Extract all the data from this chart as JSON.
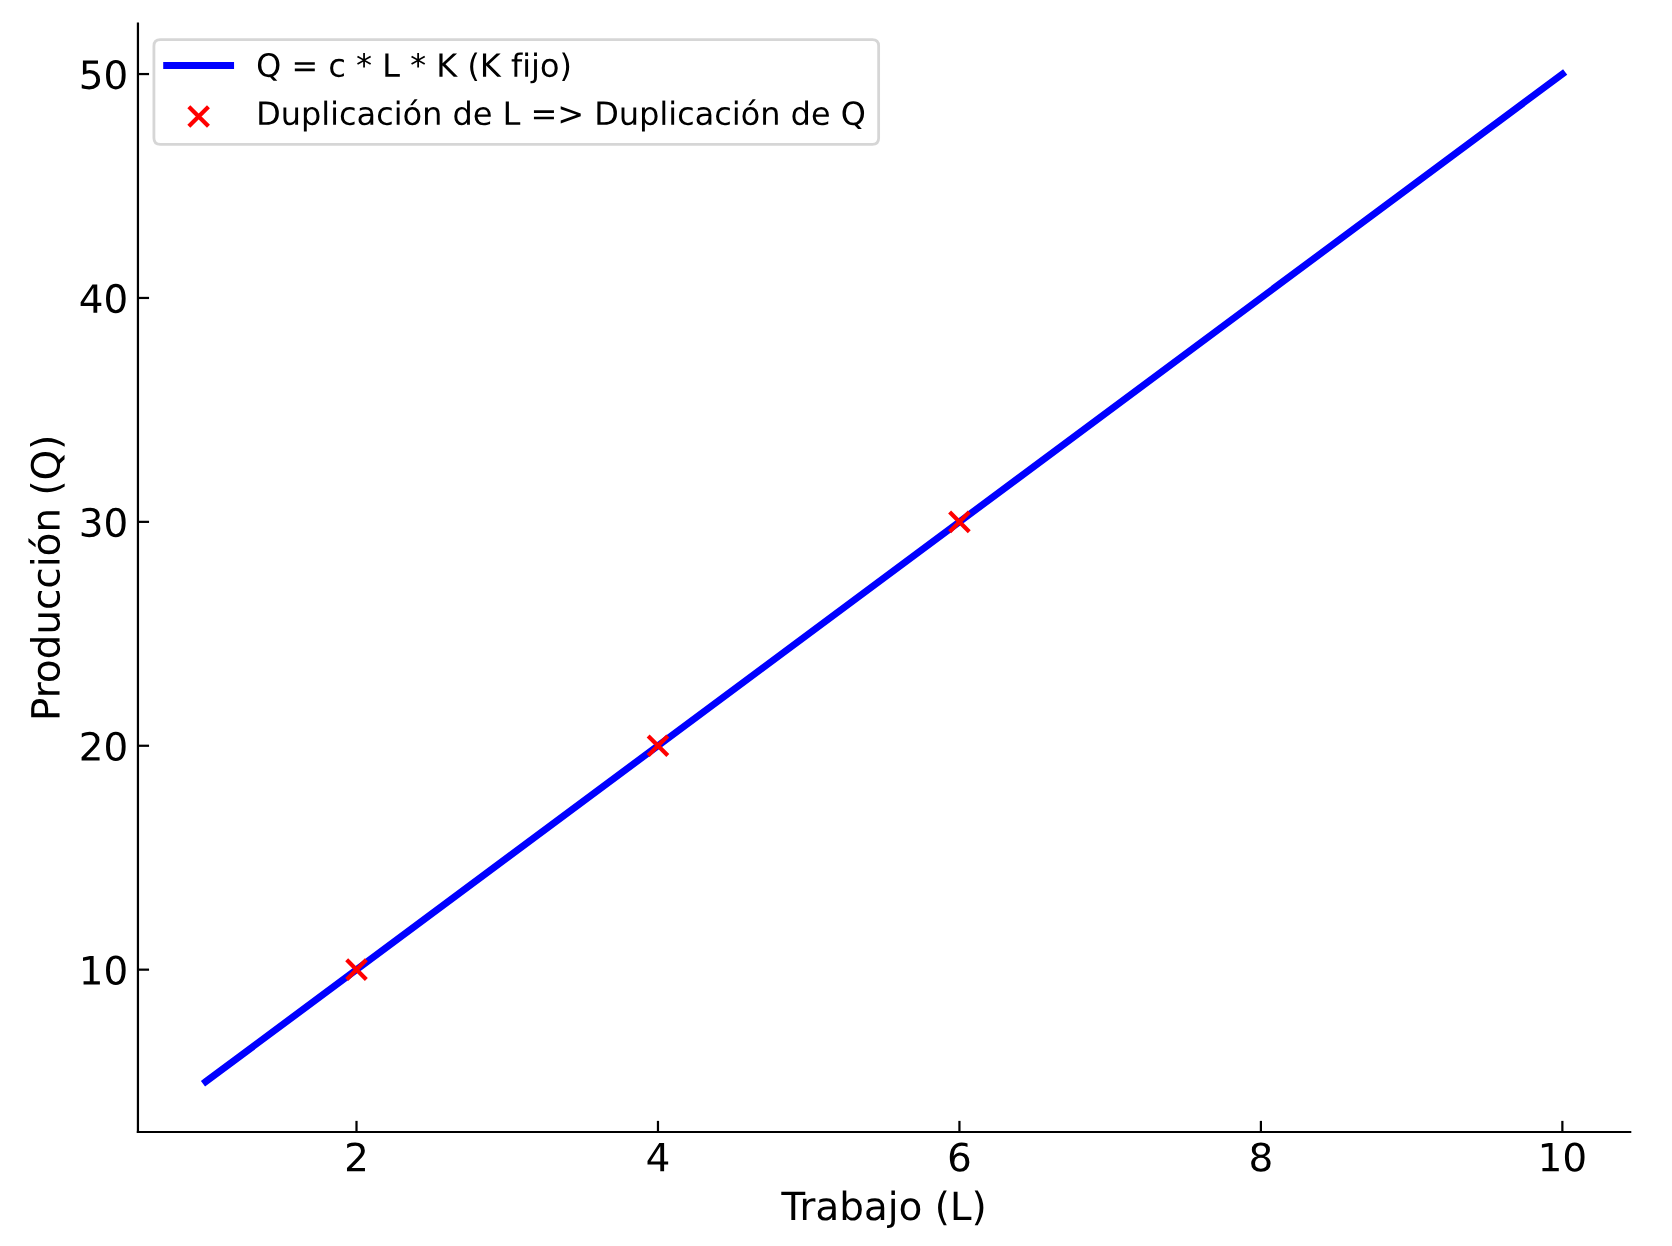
{
  "chart_data": {
    "type": "line",
    "xlabel": "Trabajo (L)",
    "ylabel": "Producción (Q)",
    "xlim": [
      0.55,
      10.45
    ],
    "ylim": [
      2.75,
      52.25
    ],
    "xticks": [
      2,
      4,
      6,
      8,
      10
    ],
    "yticks": [
      10,
      20,
      30,
      40,
      50
    ],
    "grid": false,
    "legend": "top left",
    "series": [
      {
        "name": "Q = c * L * K (K fijo)",
        "color": "#0000ff",
        "x": [
          1,
          10
        ],
        "values": [
          5,
          50
        ],
        "marker": "none",
        "line_style": "solid"
      },
      {
        "name": "Duplicación de L => Duplicación de Q",
        "type": "scatter",
        "color": "#ff0000",
        "x": [
          2,
          4,
          6
        ],
        "values": [
          10,
          20,
          30
        ],
        "marker": "cross"
      }
    ]
  }
}
